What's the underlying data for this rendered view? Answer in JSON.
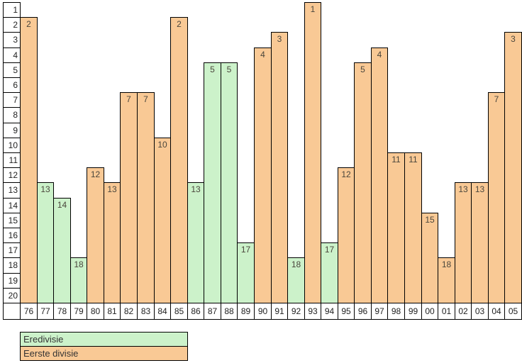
{
  "chart_data": {
    "type": "bar",
    "title": "",
    "xlabel": "",
    "ylabel": "",
    "y_axis": {
      "inverted": true,
      "min": 1,
      "max": 20
    },
    "y_ticks": [
      "1",
      "2",
      "3",
      "4",
      "5",
      "6",
      "7",
      "8",
      "9",
      "10",
      "11",
      "12",
      "13",
      "14",
      "15",
      "16",
      "17",
      "18",
      "19",
      "20"
    ],
    "categories": [
      "76",
      "77",
      "78",
      "79",
      "80",
      "81",
      "82",
      "83",
      "84",
      "85",
      "86",
      "87",
      "88",
      "89",
      "90",
      "91",
      "92",
      "93",
      "94",
      "95",
      "96",
      "97",
      "98",
      "99",
      "00",
      "01",
      "02",
      "03",
      "04",
      "05"
    ],
    "bars": [
      {
        "year": "76",
        "position": 2,
        "league": "eerste"
      },
      {
        "year": "77",
        "position": 13,
        "league": "eredivisie"
      },
      {
        "year": "78",
        "position": 14,
        "league": "eredivisie"
      },
      {
        "year": "79",
        "position": 18,
        "league": "eredivisie"
      },
      {
        "year": "80",
        "position": 12,
        "league": "eerste"
      },
      {
        "year": "81",
        "position": 13,
        "league": "eerste"
      },
      {
        "year": "82",
        "position": 7,
        "league": "eerste"
      },
      {
        "year": "83",
        "position": 7,
        "league": "eerste"
      },
      {
        "year": "84",
        "position": 10,
        "league": "eerste"
      },
      {
        "year": "85",
        "position": 2,
        "league": "eerste"
      },
      {
        "year": "86",
        "position": 13,
        "league": "eredivisie"
      },
      {
        "year": "87",
        "position": 5,
        "league": "eredivisie"
      },
      {
        "year": "88",
        "position": 5,
        "league": "eredivisie"
      },
      {
        "year": "89",
        "position": 17,
        "league": "eredivisie"
      },
      {
        "year": "90",
        "position": 4,
        "league": "eerste"
      },
      {
        "year": "91",
        "position": 3,
        "league": "eerste"
      },
      {
        "year": "92",
        "position": 18,
        "league": "eredivisie"
      },
      {
        "year": "93",
        "position": 1,
        "league": "eerste"
      },
      {
        "year": "94",
        "position": 17,
        "league": "eredivisie"
      },
      {
        "year": "95",
        "position": 12,
        "league": "eerste"
      },
      {
        "year": "96",
        "position": 5,
        "league": "eerste"
      },
      {
        "year": "97",
        "position": 4,
        "league": "eerste"
      },
      {
        "year": "98",
        "position": 11,
        "league": "eerste"
      },
      {
        "year": "99",
        "position": 11,
        "league": "eerste"
      },
      {
        "year": "00",
        "position": 15,
        "league": "eerste"
      },
      {
        "year": "01",
        "position": 18,
        "league": "eerste"
      },
      {
        "year": "02",
        "position": 13,
        "league": "eerste"
      },
      {
        "year": "03",
        "position": 13,
        "league": "eerste"
      },
      {
        "year": "04",
        "position": 7,
        "league": "eerste"
      },
      {
        "year": "05",
        "position": 3,
        "league": "eerste"
      }
    ],
    "legend_position": "bottom-left",
    "grid": false
  },
  "legend": {
    "items": [
      {
        "key": "eredivisie",
        "label": "Eredivisie"
      },
      {
        "key": "eerste",
        "label": "Eerste divisie"
      }
    ]
  },
  "colors": {
    "eredivisie": "#ccf2ca",
    "eerste": "#f9c995",
    "border": "#000000",
    "bar_label_text": "#4a463c",
    "axis_text": "#222222"
  }
}
